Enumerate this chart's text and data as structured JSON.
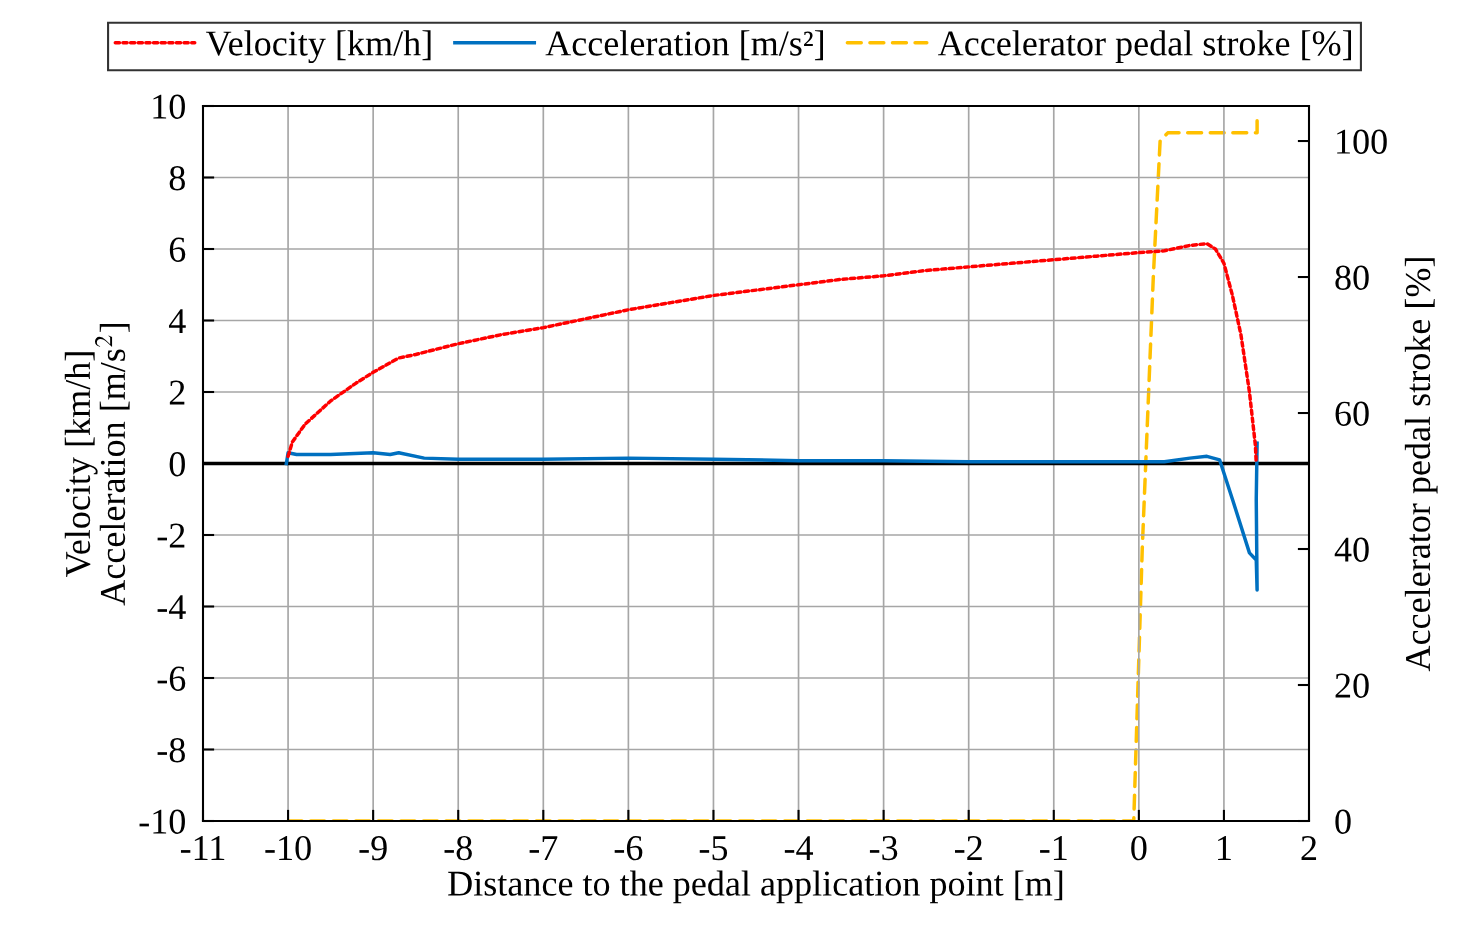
{
  "chart_data": {
    "type": "line",
    "xlabel": "Distance to the pedal application point [m]",
    "ylabel": "Velocity [km/h]\nAcceleration [m/s$^{2}$]",
    "y2label": "Accelerator pedal stroke [%]",
    "xlim": [
      -11,
      2
    ],
    "xticks": [
      -11,
      -10,
      -9,
      -8,
      -7,
      -6,
      -5,
      -4,
      -3,
      -2,
      -1,
      0,
      1,
      2
    ],
    "ylim": [
      -10,
      10
    ],
    "yticks": [
      -10,
      -8,
      -6,
      -4,
      -2,
      0,
      2,
      4,
      6,
      8,
      10
    ],
    "y2lim": [
      0,
      105.15
    ],
    "y2ticks": [
      0,
      20,
      40,
      60,
      80,
      100
    ],
    "grid": true,
    "legend": "top",
    "marker": "none",
    "ref_lines": [
      {
        "axis": "y",
        "value": 0,
        "color": "#000000"
      }
    ],
    "series": [
      {
        "name": "Velocity [km/h]",
        "color": "#ff0000",
        "line_style": "dotted",
        "x": [
          -10.0,
          -9.95,
          -9.8,
          -9.5,
          -9.2,
          -9.0,
          -8.7,
          -8.5,
          -8.0,
          -7.5,
          -7.0,
          -6.5,
          -6.0,
          -5.5,
          -5.0,
          -4.5,
          -4.0,
          -3.5,
          -3.0,
          -2.5,
          -2.0,
          -1.5,
          -1.0,
          -0.5,
          0.0,
          0.3,
          0.6,
          0.8,
          0.9,
          1.0,
          1.1,
          1.2,
          1.3,
          1.37,
          1.38
        ],
        "values": [
          0.2,
          0.6,
          1.1,
          1.75,
          2.25,
          2.55,
          2.95,
          3.05,
          3.35,
          3.6,
          3.8,
          4.05,
          4.3,
          4.5,
          4.7,
          4.85,
          5.0,
          5.15,
          5.25,
          5.4,
          5.5,
          5.6,
          5.7,
          5.8,
          5.9,
          5.95,
          6.1,
          6.15,
          6.0,
          5.6,
          4.7,
          3.6,
          2.0,
          0.5,
          0.0
        ]
      },
      {
        "name": "Acceleration [m/s²]",
        "color": "#0070c0",
        "line_style": "solid",
        "x": [
          -10.02,
          -10.0,
          -9.9,
          -9.5,
          -9.0,
          -8.8,
          -8.7,
          -8.4,
          -8.0,
          -7.0,
          -6.0,
          -5.0,
          -4.0,
          -3.0,
          -2.0,
          -1.0,
          0.0,
          0.3,
          0.6,
          0.8,
          0.95,
          1.1,
          1.3,
          1.38,
          1.39,
          1.38,
          1.39
        ],
        "values": [
          0.0,
          0.3,
          0.25,
          0.25,
          0.3,
          0.25,
          0.3,
          0.15,
          0.12,
          0.12,
          0.15,
          0.12,
          0.08,
          0.08,
          0.05,
          0.05,
          0.05,
          0.05,
          0.15,
          0.2,
          0.1,
          -1.0,
          -2.5,
          -2.7,
          -3.54,
          -1.0,
          0.57
        ]
      },
      {
        "name": "Accelerator pedal stroke [%]",
        "color": "#ffc000",
        "line_style": "dashed",
        "axis": "y2",
        "x": [
          -10.0,
          -0.06,
          0.04,
          0.17,
          0.25,
          0.34,
          1.39,
          1.39
        ],
        "values": [
          0,
          0,
          40,
          80,
          100,
          101.2,
          101.2,
          103
        ]
      }
    ]
  }
}
